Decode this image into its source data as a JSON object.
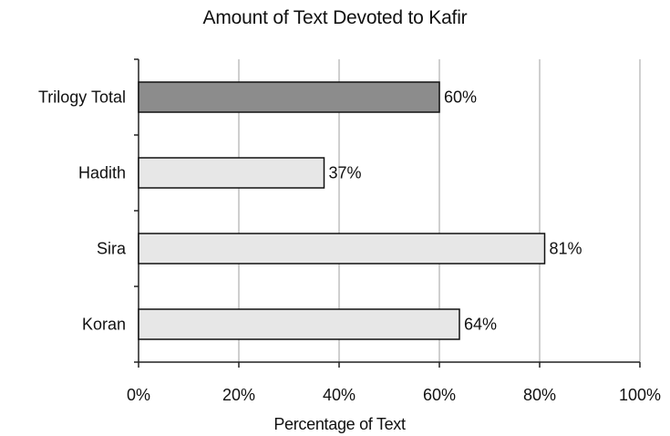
{
  "chart_data": {
    "type": "bar",
    "orientation": "horizontal",
    "title": "Amount of Text Devoted to Kafir",
    "xlabel": "Percentage of Text",
    "ylabel": "",
    "categories": [
      "Trilogy Total",
      "Hadith",
      "Sira",
      "Koran"
    ],
    "values": [
      60,
      37,
      81,
      64
    ],
    "data_labels": [
      "60%",
      "37%",
      "81%",
      "64%"
    ],
    "xlim": [
      0,
      100
    ],
    "x_ticks": [
      0,
      20,
      40,
      60,
      80,
      100
    ],
    "x_tick_labels": [
      "0%",
      "20%",
      "40%",
      "60%",
      "80%",
      "100%"
    ],
    "grid": "vertical",
    "legend": "none",
    "colors": {
      "highlight_bar": "#8c8c8c",
      "bar": "#e7e7e7",
      "bar_border": "#111111",
      "grid": "#cfcfcf",
      "axis": "#222222"
    }
  }
}
